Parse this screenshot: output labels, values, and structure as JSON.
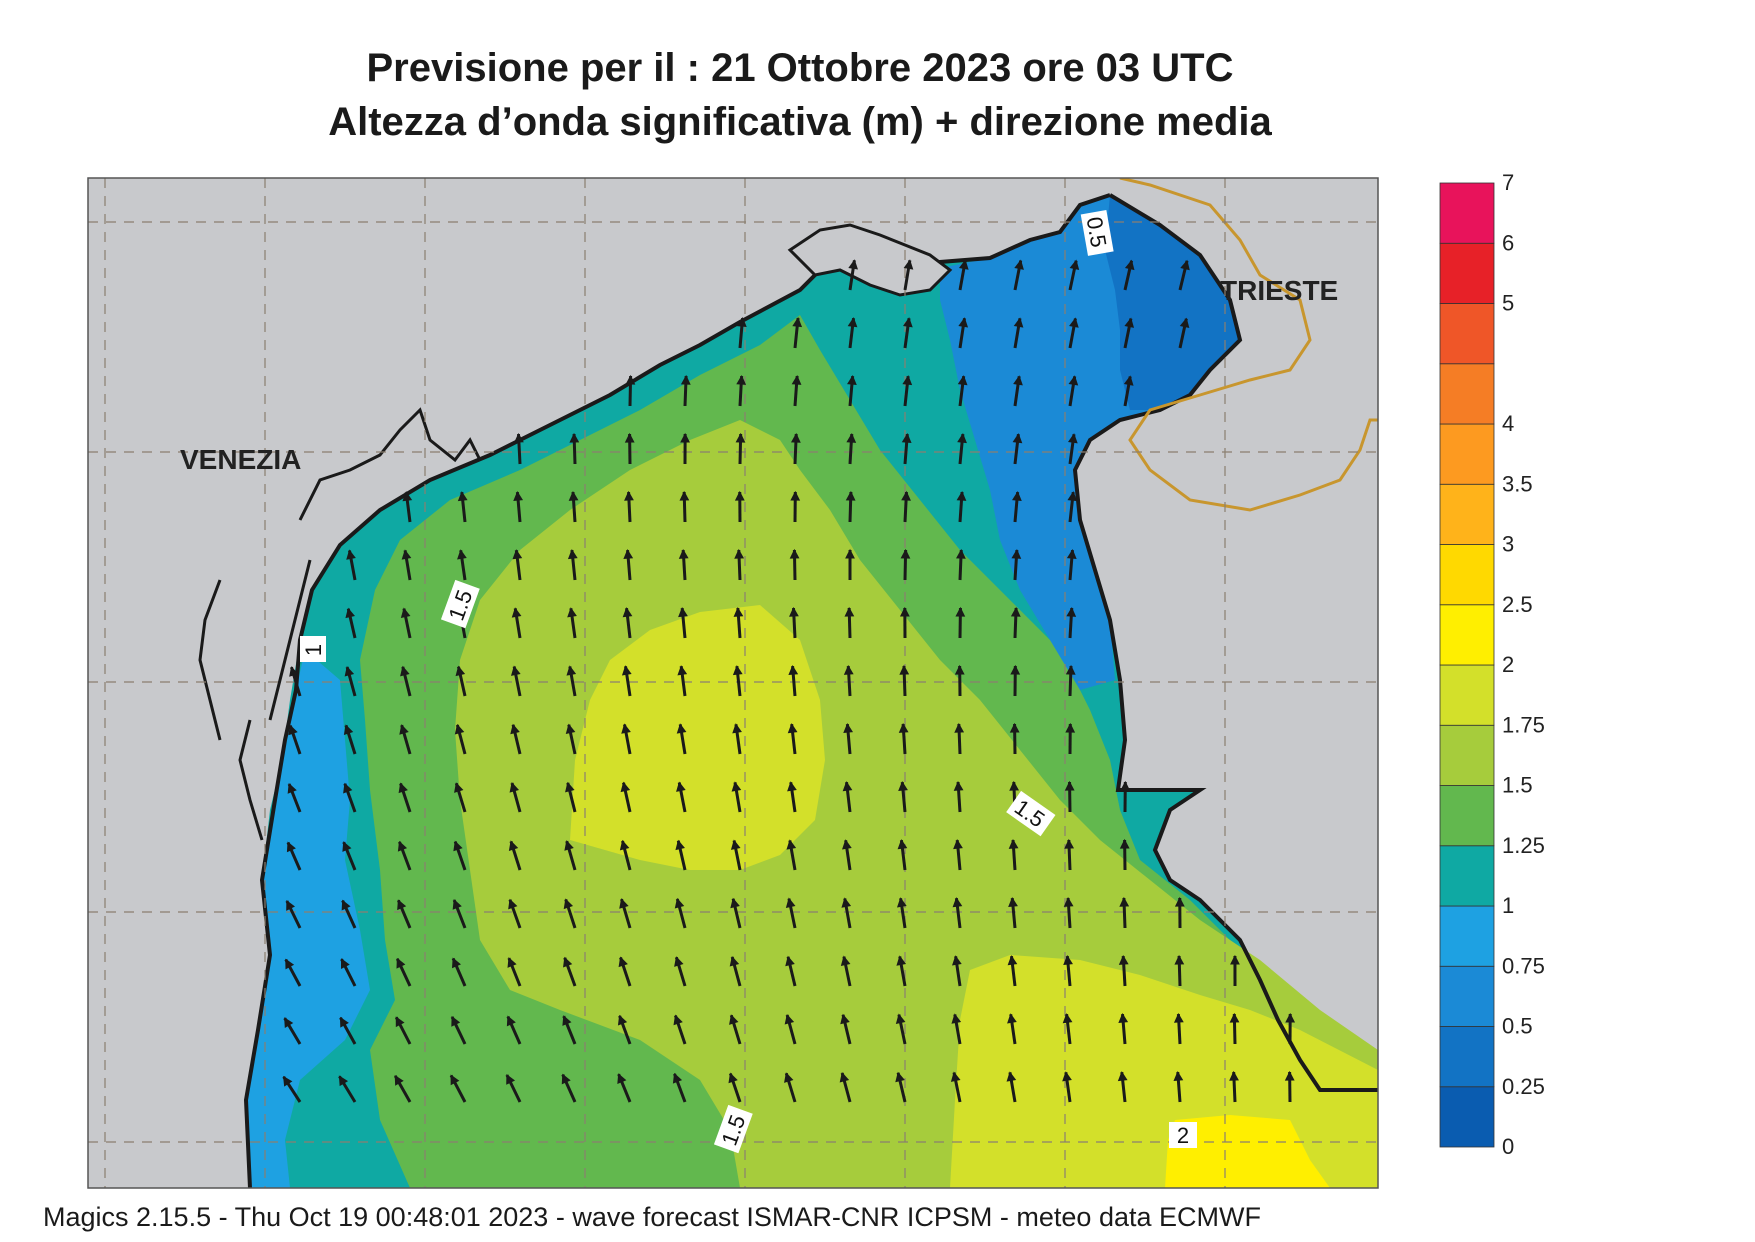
{
  "title_line1": "Previsione per il  :  21  Ottobre  2023   ore 03 UTC",
  "title_line2": "Altezza d’onda significativa (m) + direzione media",
  "footer": "Magics 2.15.5 - Thu Oct 19 00:48:01 2023 - wave forecast  ISMAR-CNR  ICPSM - meteo data   ECMWF",
  "cities": {
    "venezia": "VENEZIA",
    "trieste": "TRIESTE"
  },
  "contour_labels": {
    "label_a": "0.5",
    "label_b": "1.5",
    "label_c": "1",
    "label_d": "1.5",
    "label_e": "1.5",
    "label_f": "2"
  },
  "colorbar": {
    "levels": [
      "0",
      "0.25",
      "0.5",
      "0.75",
      "1",
      "1.25",
      "1.5",
      "1.75",
      "2",
      "2.5",
      "3",
      "3.5",
      "4",
      "4.5",
      "5",
      "6",
      "7"
    ],
    "label_values": [
      "0",
      "0.25",
      "0.5",
      "0.75",
      "1",
      "1.25",
      "1.5",
      "1.75",
      "2",
      "2.5",
      "3",
      "3.5",
      "4",
      "5",
      "6",
      "7"
    ],
    "colors": [
      "#0a5cb0",
      "#1273c4",
      "#1b8ad6",
      "#1ea1e2",
      "#0fa9a3",
      "#62b84e",
      "#a6cc3c",
      "#d3e02a",
      "#ffef00",
      "#ffd900",
      "#ffb31a",
      "#fd9a20",
      "#f57d25",
      "#ef5628",
      "#e72128",
      "#e8135b"
    ]
  },
  "colors": {
    "land": "#c8c9cc",
    "coast": "#1a1a1a",
    "border": "#c8962e",
    "grid": "#8a7f70"
  }
}
